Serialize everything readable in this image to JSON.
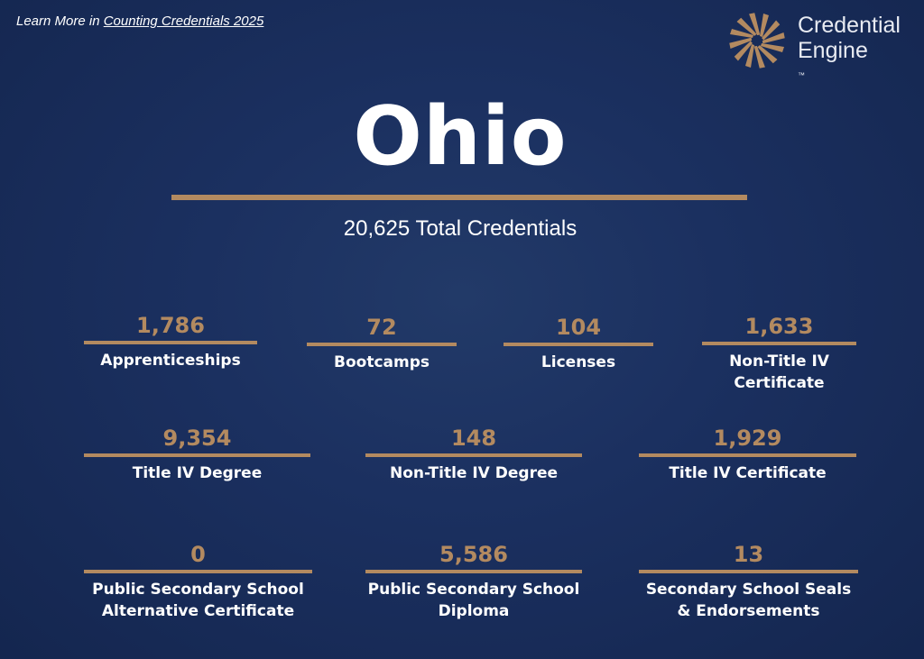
{
  "header": {
    "learn_prefix": "Learn More in ",
    "learn_link": "Counting Credentials 2025"
  },
  "logo": {
    "line1": "Credential",
    "line2": "Engine",
    "tm": "™"
  },
  "state": {
    "name": "Ohio",
    "total": "20,625 Total Credentials"
  },
  "colors": {
    "background": "#1b3060",
    "accent": "#b38a60",
    "text": "#ffffff"
  },
  "stats": [
    {
      "value": "1,786",
      "label": "Apprenticeships"
    },
    {
      "value": "72",
      "label": "Bootcamps"
    },
    {
      "value": "104",
      "label": "Licenses"
    },
    {
      "value": "1,633",
      "label": "Non-Title IV\nCertificate"
    },
    {
      "value": "9,354",
      "label": "Title IV Degree"
    },
    {
      "value": "148",
      "label": "Non-Title IV Degree"
    },
    {
      "value": "1,929",
      "label": "Title IV Certificate"
    },
    {
      "value": "0",
      "label": "Public Secondary School\nAlternative Certificate"
    },
    {
      "value": "5,586",
      "label": "Public Secondary School\nDiploma"
    },
    {
      "value": "13",
      "label": "Secondary School Seals\n& Endorsements"
    }
  ]
}
